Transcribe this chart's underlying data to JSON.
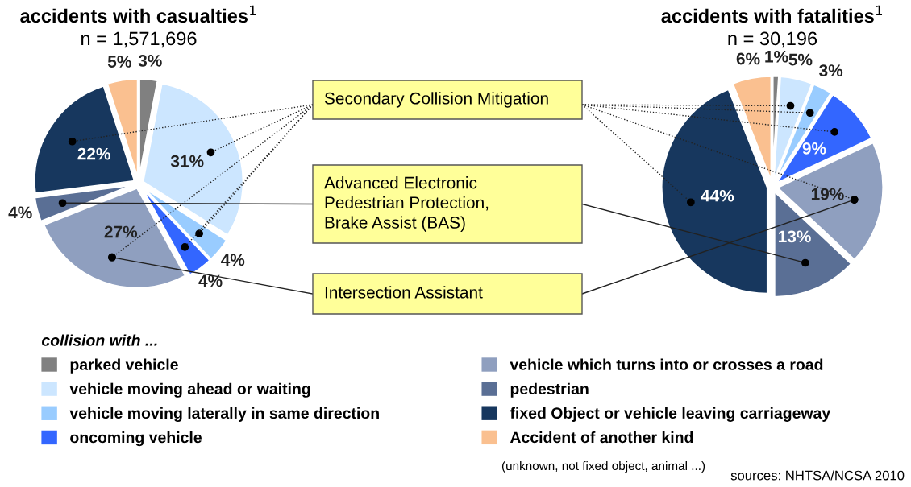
{
  "chart_data": [
    {
      "type": "pie",
      "title": "accidents with casualties$^{1}$",
      "subtitle": "n = 1,571,696",
      "categories": [
        "parked vehicle",
        "vehicle moving ahead or waiting",
        "vehicle moving laterally in same direction",
        "oncoming vehicle",
        "vehicle which turns into or crosses a road",
        "pedestrian",
        "fixed Object or vehicle leaving carriageway",
        "Accident of another kind"
      ],
      "values": [
        3,
        31,
        4,
        4,
        27,
        4,
        22,
        5
      ],
      "value_labels": [
        "3%",
        "31%",
        "4%",
        "4%",
        "27%",
        "4%",
        "22%",
        "5%"
      ],
      "colors": [
        "#808080",
        "#cce6ff",
        "#99ccff",
        "#3366ff",
        "#8f9fbf",
        "#5a6f95",
        "#17375e",
        "#fac090"
      ],
      "legend": "bottom",
      "legend_title": "collision with ...",
      "annotations": [
        "Secondary Collision Mitigation",
        "Advanced Electronic\nPedestrian Protection,\nBrake Assist (BAS)",
        "Intersection Assistant",
        "(unknown, not fixed object, animal ...)",
        "sources: NHTSA/NCSA 2010"
      ]
    },
    {
      "type": "pie",
      "title": "accidents with fatalities$^{1}$",
      "subtitle": "n = 30,196",
      "categories": [
        null,
        null,
        null,
        null,
        null,
        null,
        null,
        null
      ],
      "values": [
        1,
        5,
        3,
        9,
        19,
        13,
        44,
        6
      ],
      "value_labels": [
        "1%",
        "5%",
        "3%",
        "9%",
        "19%",
        "13%",
        "44%",
        "6%"
      ],
      "colors": [
        "#808080",
        "#cce6ff",
        "#99ccff",
        "#3366ff",
        "#8f9fbf",
        "#5a6f95",
        "#17375e",
        "#fac090"
      ]
    }
  ]
}
